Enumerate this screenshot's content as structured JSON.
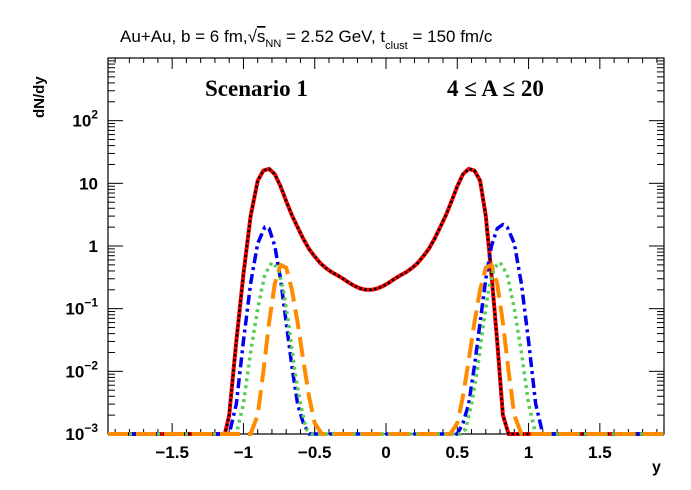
{
  "chart_data": {
    "type": "line",
    "title": {
      "prefix": "Au+Au, b = 6 fm,",
      "sqrt_s_label": "s",
      "sqrt_s_sub": "NN",
      "sqrt_s_value": " = 2.52 GeV, t",
      "t_sub": "clust",
      "t_value": " = 150 fm/c"
    },
    "annotations": {
      "scenario": "Scenario 1",
      "mass_range": "4 ≤ A ≤ 20"
    },
    "xlabel": "y",
    "ylabel": "dN/dy",
    "xlim": [
      -1.95,
      1.95
    ],
    "ylim": [
      0.001,
      1000
    ],
    "yscale": "log",
    "x_ticks": [
      {
        "v": -1.5,
        "label": "−1.5"
      },
      {
        "v": -1.0,
        "label": "−1"
      },
      {
        "v": -0.5,
        "label": "−0.5"
      },
      {
        "v": 0.0,
        "label": "0"
      },
      {
        "v": 0.5,
        "label": "0.5"
      },
      {
        "v": 1.0,
        "label": "1"
      },
      {
        "v": 1.5,
        "label": "1.5"
      }
    ],
    "y_ticks": [
      {
        "v": 0.001,
        "base": "10",
        "exp": "−3"
      },
      {
        "v": 0.01,
        "base": "10",
        "exp": "−2"
      },
      {
        "v": 0.1,
        "base": "10",
        "exp": "−1"
      },
      {
        "v": 1,
        "base": "1",
        "exp": ""
      },
      {
        "v": 10,
        "base": "10",
        "exp": ""
      },
      {
        "v": 100,
        "base": "10",
        "exp": "2"
      }
    ],
    "grid": false,
    "series": [
      {
        "color": "#ff0000",
        "style": "solid",
        "width": 4,
        "x": [
          -1.95,
          -1.13,
          -1.1,
          -1.05,
          -1.0,
          -0.95,
          -0.9,
          -0.86,
          -0.82,
          -0.78,
          -0.74,
          -0.7,
          -0.66,
          -0.62,
          -0.58,
          -0.54,
          -0.5,
          -0.46,
          -0.42,
          -0.38,
          -0.34,
          -0.3,
          -0.26,
          -0.22,
          -0.18,
          -0.14,
          -0.1,
          -0.06,
          -0.02,
          0.02,
          0.06,
          0.1,
          0.14,
          0.18,
          0.22,
          0.26,
          0.3,
          0.34,
          0.38,
          0.42,
          0.46,
          0.5,
          0.54,
          0.58,
          0.62,
          0.66,
          0.7,
          0.74,
          0.78,
          0.82,
          0.86,
          0.9,
          0.95,
          1.0,
          1.05,
          1.1,
          1.13,
          1.95
        ],
        "y": [
          0.001,
          0.001,
          0.002,
          0.03,
          0.35,
          3.0,
          11,
          16,
          17,
          14,
          9,
          5.2,
          3.1,
          2.0,
          1.3,
          0.9,
          0.68,
          0.53,
          0.44,
          0.38,
          0.34,
          0.3,
          0.26,
          0.23,
          0.21,
          0.2,
          0.2,
          0.21,
          0.23,
          0.26,
          0.3,
          0.34,
          0.38,
          0.44,
          0.53,
          0.68,
          0.9,
          1.3,
          2.0,
          3.1,
          5.2,
          9,
          14,
          17,
          16,
          11,
          3.0,
          0.35,
          0.03,
          0.002,
          0.001,
          0.001,
          0.001,
          0.001,
          0.001,
          0.001,
          0.001,
          0.001
        ]
      },
      {
        "color": "#000000",
        "style": "dotted",
        "width": 2.5,
        "x": [
          -1.95,
          -1.13,
          -1.1,
          -1.05,
          -1.0,
          -0.95,
          -0.9,
          -0.86,
          -0.82,
          -0.78,
          -0.74,
          -0.7,
          -0.66,
          -0.62,
          -0.58,
          -0.54,
          -0.5,
          -0.46,
          -0.42,
          -0.38,
          -0.34,
          -0.3,
          -0.26,
          -0.22,
          -0.18,
          -0.14,
          -0.1,
          -0.06,
          -0.02,
          0.02,
          0.06,
          0.1,
          0.14,
          0.18,
          0.22,
          0.26,
          0.3,
          0.34,
          0.38,
          0.42,
          0.46,
          0.5,
          0.54,
          0.58,
          0.62,
          0.66,
          0.7,
          0.74,
          0.78,
          0.82,
          0.86,
          0.9,
          0.95,
          1.0,
          1.05,
          1.1,
          1.13,
          1.95
        ],
        "y": [
          0.001,
          0.001,
          0.002,
          0.03,
          0.35,
          3.0,
          11,
          16,
          17,
          14,
          9,
          5.2,
          3.1,
          2.0,
          1.3,
          0.9,
          0.68,
          0.53,
          0.44,
          0.38,
          0.34,
          0.3,
          0.26,
          0.23,
          0.21,
          0.2,
          0.2,
          0.21,
          0.23,
          0.26,
          0.3,
          0.34,
          0.38,
          0.44,
          0.53,
          0.68,
          0.9,
          1.3,
          2.0,
          3.1,
          5.2,
          9,
          14,
          17,
          16,
          11,
          3.0,
          0.35,
          0.03,
          0.002,
          0.001,
          0.001,
          0.001,
          0.001,
          0.001,
          0.001,
          0.001,
          0.001
        ]
      },
      {
        "color": "#0000ee",
        "style": "dashdot",
        "width": 3.5,
        "x": [
          -1.95,
          -1.1,
          -1.05,
          -1.0,
          -0.95,
          -0.9,
          -0.85,
          -0.82,
          -0.78,
          -0.74,
          -0.7,
          -0.66,
          -0.62,
          -0.58,
          -0.54,
          -0.5,
          -0.45,
          -0.3,
          0.3,
          0.45,
          0.5,
          0.54,
          0.58,
          0.62,
          0.66,
          0.7,
          0.74,
          0.78,
          0.82,
          0.85,
          0.9,
          0.95,
          1.0,
          1.05,
          1.1,
          1.95
        ],
        "y": [
          0.001,
          0.001,
          0.003,
          0.03,
          0.25,
          1.1,
          2.0,
          1.9,
          1.0,
          0.3,
          0.06,
          0.012,
          0.003,
          0.0015,
          0.001,
          0.001,
          0.001,
          0.001,
          0.001,
          0.001,
          0.001,
          0.0015,
          0.003,
          0.012,
          0.06,
          0.3,
          1.0,
          1.9,
          2.2,
          2.0,
          1.1,
          0.25,
          0.03,
          0.003,
          0.001,
          0.001
        ]
      },
      {
        "color": "#55cc55",
        "style": "dotted",
        "width": 3.5,
        "x": [
          -1.95,
          -1.05,
          -1.0,
          -0.95,
          -0.9,
          -0.85,
          -0.8,
          -0.76,
          -0.72,
          -0.68,
          -0.64,
          -0.6,
          -0.56,
          -0.52,
          0.52,
          0.56,
          0.6,
          0.64,
          0.68,
          0.72,
          0.76,
          0.8,
          0.85,
          0.9,
          0.95,
          1.0,
          1.05,
          1.95
        ],
        "y": [
          0.001,
          0.001,
          0.003,
          0.02,
          0.1,
          0.35,
          0.55,
          0.45,
          0.2,
          0.05,
          0.01,
          0.003,
          0.0012,
          0.001,
          0.001,
          0.0012,
          0.003,
          0.01,
          0.05,
          0.2,
          0.45,
          0.55,
          0.35,
          0.1,
          0.02,
          0.003,
          0.001,
          0.001
        ]
      },
      {
        "color": "#ff8c00",
        "style": "longdash",
        "width": 4,
        "x": [
          -1.95,
          -0.95,
          -0.9,
          -0.86,
          -0.82,
          -0.78,
          -0.74,
          -0.7,
          -0.66,
          -0.62,
          -0.58,
          -0.54,
          -0.5,
          -0.45,
          0.45,
          0.5,
          0.54,
          0.58,
          0.62,
          0.66,
          0.7,
          0.74,
          0.78,
          0.82,
          0.86,
          0.9,
          0.95,
          1.95
        ],
        "y": [
          0.001,
          0.001,
          0.002,
          0.01,
          0.06,
          0.25,
          0.5,
          0.45,
          0.2,
          0.06,
          0.015,
          0.004,
          0.0015,
          0.001,
          0.001,
          0.0015,
          0.004,
          0.015,
          0.06,
          0.2,
          0.45,
          0.5,
          0.25,
          0.06,
          0.01,
          0.002,
          0.001,
          0.001
        ]
      }
    ]
  }
}
